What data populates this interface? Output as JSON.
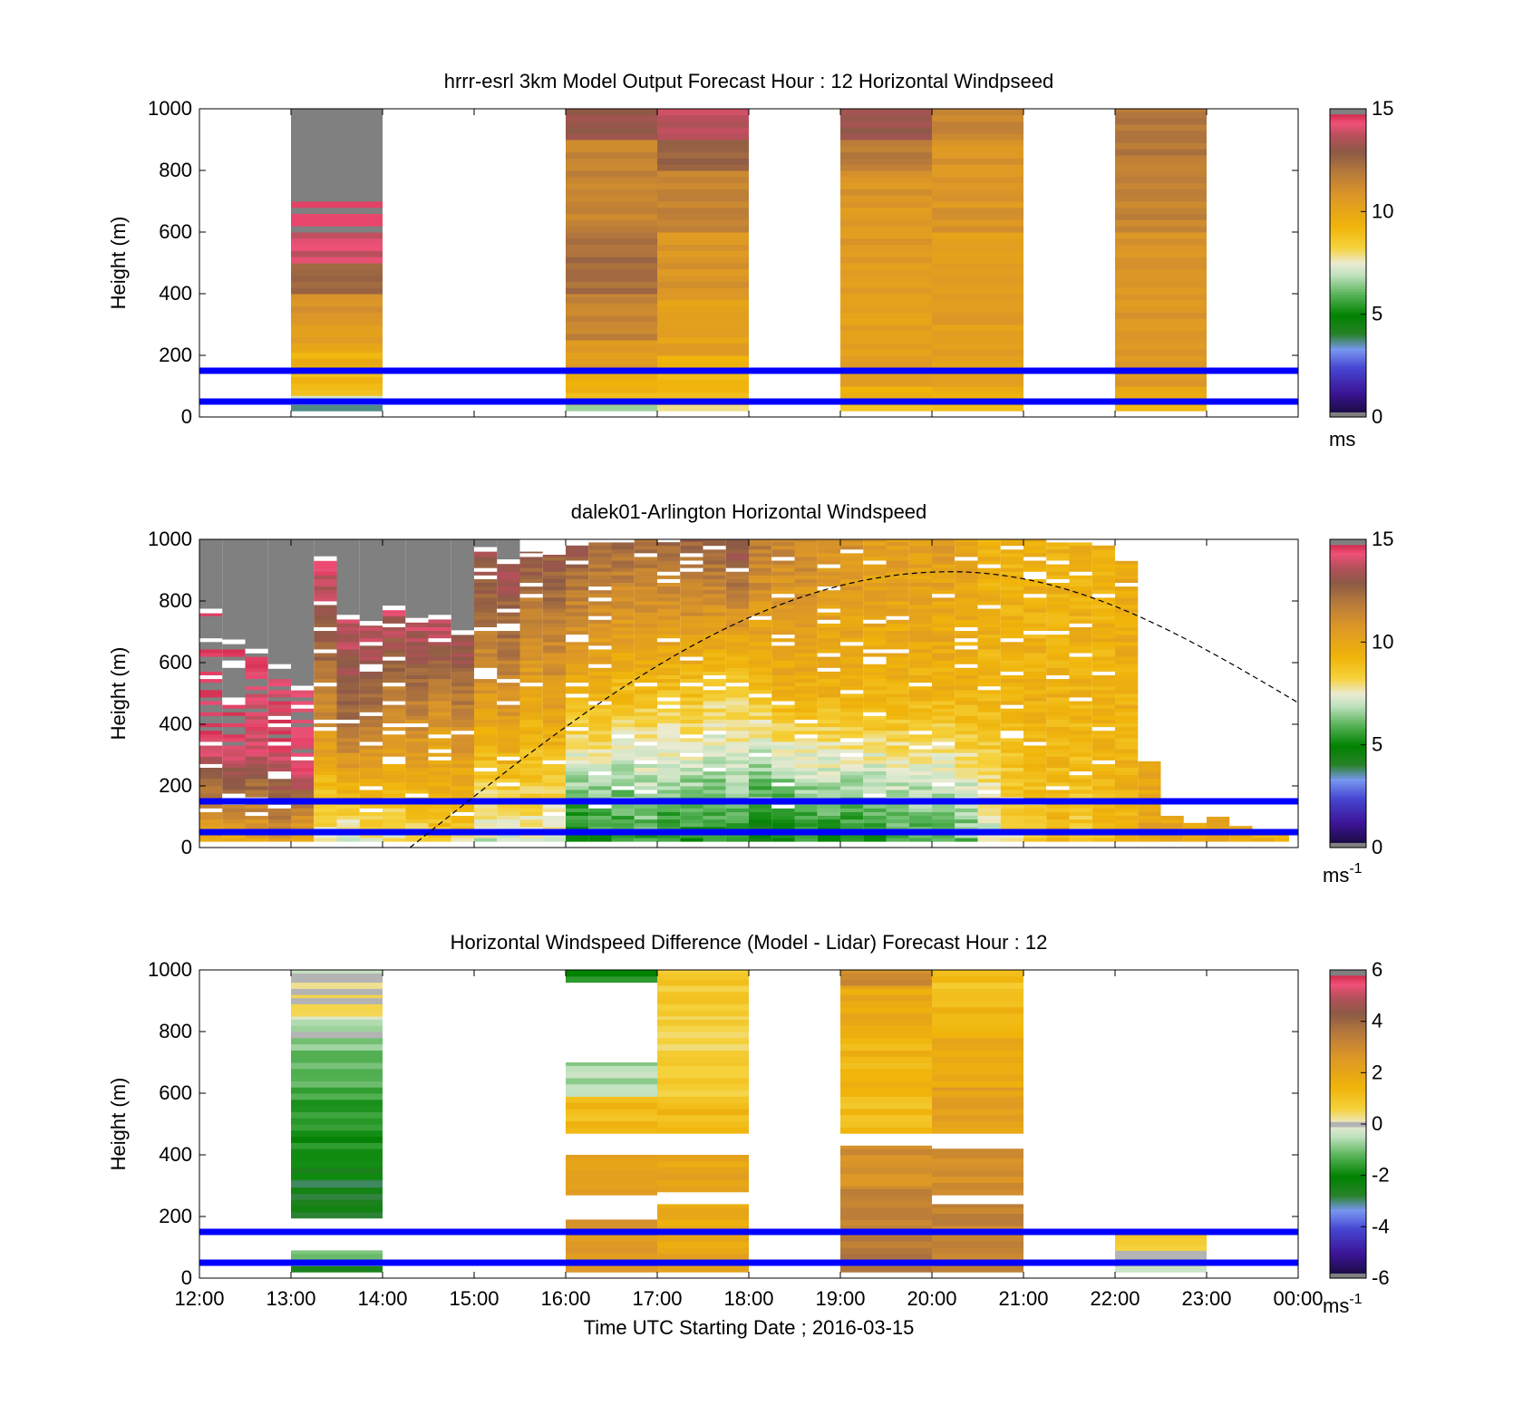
{
  "figure": {
    "xlabel": "Time UTC  Starting Date ; 2016-03-15"
  },
  "chart_data": [
    {
      "type": "heatmap",
      "title": "hrrr-esrl 3km Model Output   Forecast Hour : 12 Horizontal Windpseed",
      "ylabel": "Height (m)",
      "ylim": [
        0,
        1000
      ],
      "yticks": [
        "0",
        "200",
        "400",
        "600",
        "800",
        "1000"
      ],
      "xticks": [
        "12:00",
        "13:00",
        "14:00",
        "15:00",
        "16:00",
        "17:00",
        "18:00",
        "19:00",
        "20:00",
        "21:00",
        "22:00",
        "23:00",
        "00:00"
      ],
      "colorbar": {
        "min": 0,
        "max": 15,
        "ticks": [
          "0",
          "5",
          "10",
          "15"
        ],
        "unit": "ms",
        "scale": "speed"
      },
      "reference_lines_m": [
        50,
        150
      ],
      "columns": [
        {
          "hour": 13,
          "bottom": 20,
          "cells": [
            [
              20,
              40,
              4
            ],
            [
              40,
              70,
              7.5
            ],
            [
              70,
              90,
              8.5
            ],
            [
              90,
              150,
              9.2
            ],
            [
              150,
              220,
              9.5
            ],
            [
              220,
              300,
              10.3
            ],
            [
              300,
              400,
              11
            ],
            [
              400,
              500,
              12.5
            ],
            [
              500,
              600,
              14
            ],
            [
              600,
              700,
              14.7
            ],
            [
              700,
              1000,
              16
            ]
          ]
        },
        {
          "hour": 16,
          "bottom": 20,
          "cells": [
            [
              20,
              40,
              6.5
            ],
            [
              40,
              80,
              9
            ],
            [
              80,
              150,
              9.5
            ],
            [
              150,
              250,
              10.5
            ],
            [
              250,
              400,
              11.5
            ],
            [
              400,
              600,
              12.3
            ],
            [
              600,
              900,
              11.5
            ],
            [
              900,
              1000,
              13
            ]
          ]
        },
        {
          "hour": 17,
          "bottom": 20,
          "cells": [
            [
              20,
              40,
              7.7
            ],
            [
              40,
              80,
              8.8
            ],
            [
              80,
              200,
              9.3
            ],
            [
              200,
              400,
              10.3
            ],
            [
              400,
              600,
              10.8
            ],
            [
              600,
              800,
              11.5
            ],
            [
              800,
              900,
              12.5
            ],
            [
              900,
              1000,
              13.7
            ]
          ]
        },
        {
          "hour": 19,
          "bottom": 20,
          "cells": [
            [
              20,
              40,
              8.5
            ],
            [
              40,
              100,
              9.5
            ],
            [
              100,
              500,
              10.3
            ],
            [
              500,
              700,
              10.6
            ],
            [
              700,
              800,
              10.8
            ],
            [
              800,
              900,
              11.8
            ],
            [
              900,
              1000,
              13.3
            ]
          ]
        },
        {
          "hour": 20,
          "bottom": 20,
          "cells": [
            [
              20,
              40,
              9
            ],
            [
              40,
              100,
              9.6
            ],
            [
              100,
              600,
              10.4
            ],
            [
              600,
              900,
              10.8
            ],
            [
              900,
              1000,
              11.5
            ]
          ]
        },
        {
          "hour": 22,
          "bottom": 20,
          "cells": [
            [
              20,
              40,
              9.2
            ],
            [
              40,
              100,
              10
            ],
            [
              100,
              600,
              10.8
            ],
            [
              600,
              850,
              11.5
            ],
            [
              850,
              1000,
              12
            ]
          ]
        }
      ]
    },
    {
      "type": "heatmap",
      "title": "dalek01-Arlington  Horizontal Windspeed",
      "ylabel": "Height (m)",
      "ylim": [
        0,
        1000
      ],
      "yticks": [
        "0",
        "200",
        "400",
        "600",
        "800",
        "1000"
      ],
      "xticks": [
        "12:00",
        "13:00",
        "14:00",
        "15:00",
        "16:00",
        "17:00",
        "18:00",
        "19:00",
        "20:00",
        "21:00",
        "22:00",
        "23:00",
        "00:00"
      ],
      "colorbar": {
        "min": 0,
        "max": 15,
        "ticks": [
          "0",
          "5",
          "10",
          "15"
        ],
        "unit": "ms",
        "unit_sup": "-1",
        "scale": "speed"
      },
      "reference_lines_m": [
        50,
        150
      ],
      "boundary_curve": {
        "peak_hour": 20.2,
        "peak_m": 895,
        "zero_hour": 14.3,
        "end_hour": 24,
        "end_m": 470
      },
      "profiles": [
        {
          "start": 12.0,
          "end": 12.25,
          "top": 760,
          "low": 9.5,
          "mid": 15,
          "high": 15
        },
        {
          "start": 12.25,
          "end": 12.5,
          "top": 660,
          "low": 9.5,
          "mid": 14.8,
          "high": 15
        },
        {
          "start": 12.5,
          "end": 12.75,
          "top": 630,
          "low": 10,
          "mid": 14,
          "high": 14.8
        },
        {
          "start": 12.75,
          "end": 13.0,
          "top": 580,
          "low": 10.5,
          "mid": 14.2,
          "high": 14.5
        },
        {
          "start": 13.0,
          "end": 13.25,
          "top": 510,
          "low": 9.5,
          "mid": 14.5,
          "high": 14.6
        },
        {
          "start": 13.25,
          "end": 13.5,
          "top": 930,
          "low": 7.5,
          "mid": 11.5,
          "high": 14.5
        },
        {
          "start": 13.5,
          "end": 13.75,
          "top": 740,
          "low": 7,
          "mid": 12,
          "high": 14
        },
        {
          "start": 13.75,
          "end": 14.0,
          "top": 720,
          "low": 7.5,
          "mid": 11.5,
          "high": 14
        },
        {
          "start": 14.0,
          "end": 14.25,
          "top": 770,
          "low": 7.5,
          "mid": 11,
          "high": 14
        },
        {
          "start": 14.25,
          "end": 14.5,
          "top": 730,
          "low": 8,
          "mid": 11,
          "high": 14
        },
        {
          "start": 14.5,
          "end": 14.75,
          "top": 740,
          "low": 8.5,
          "mid": 10.5,
          "high": 14
        },
        {
          "start": 14.75,
          "end": 15.0,
          "top": 690,
          "low": 8,
          "mid": 11,
          "high": 13.5
        },
        {
          "start": 15.0,
          "end": 15.25,
          "top": 960,
          "low": 7,
          "mid": 10.5,
          "high": 13.5
        },
        {
          "start": 15.25,
          "end": 15.5,
          "top": 920,
          "low": 7,
          "mid": 11,
          "high": 13.5
        },
        {
          "start": 15.5,
          "end": 15.75,
          "top": 960,
          "low": 7.5,
          "mid": 10,
          "high": 13
        },
        {
          "start": 15.75,
          "end": 16.0,
          "top": 950,
          "low": 7,
          "mid": 10.5,
          "high": 13
        },
        {
          "start": 16.0,
          "end": 16.25,
          "top": 980,
          "low": 4.5,
          "mid": 9.5,
          "high": 13
        },
        {
          "start": 16.25,
          "end": 16.5,
          "top": 990,
          "low": 5,
          "mid": 9.5,
          "high": 12.5
        },
        {
          "start": 16.5,
          "end": 16.75,
          "top": 990,
          "low": 5,
          "mid": 9,
          "high": 12.5
        },
        {
          "start": 16.75,
          "end": 17.0,
          "top": 1000,
          "low": 5.5,
          "mid": 9,
          "high": 12.5
        },
        {
          "start": 17.0,
          "end": 17.25,
          "top": 1000,
          "low": 5,
          "mid": 9,
          "high": 12.5
        },
        {
          "start": 17.25,
          "end": 17.5,
          "top": 1000,
          "low": 5,
          "mid": 9,
          "high": 12.8
        },
        {
          "start": 17.5,
          "end": 17.75,
          "top": 1000,
          "low": 5,
          "mid": 8.5,
          "high": 13
        },
        {
          "start": 17.75,
          "end": 18.0,
          "top": 1000,
          "low": 5.5,
          "mid": 8.5,
          "high": 13.5
        },
        {
          "start": 18.0,
          "end": 18.25,
          "top": 1000,
          "low": 4,
          "mid": 9,
          "high": 12
        },
        {
          "start": 18.25,
          "end": 18.5,
          "top": 1000,
          "low": 4.5,
          "mid": 9.5,
          "high": 11.5
        },
        {
          "start": 18.5,
          "end": 18.75,
          "top": 1000,
          "low": 5,
          "mid": 9.5,
          "high": 11.5
        },
        {
          "start": 18.75,
          "end": 19.0,
          "top": 1000,
          "low": 5,
          "mid": 9.5,
          "high": 11
        },
        {
          "start": 19.0,
          "end": 19.25,
          "top": 1000,
          "low": 5,
          "mid": 9.5,
          "high": 11
        },
        {
          "start": 19.25,
          "end": 19.5,
          "top": 1000,
          "low": 5,
          "mid": 9.5,
          "high": 10.5
        },
        {
          "start": 19.5,
          "end": 19.75,
          "top": 1000,
          "low": 5.5,
          "mid": 9.5,
          "high": 10.5
        },
        {
          "start": 19.75,
          "end": 20.0,
          "top": 1000,
          "low": 5.5,
          "mid": 9.5,
          "high": 10.5
        },
        {
          "start": 20.0,
          "end": 20.25,
          "top": 1000,
          "low": 5.5,
          "mid": 9.5,
          "high": 10.5
        },
        {
          "start": 20.25,
          "end": 20.5,
          "top": 1000,
          "low": 6,
          "mid": 9.5,
          "high": 10
        },
        {
          "start": 20.5,
          "end": 20.75,
          "top": 1000,
          "low": 7,
          "mid": 9.5,
          "high": 9.5
        },
        {
          "start": 20.75,
          "end": 21.0,
          "top": 1000,
          "low": 8,
          "mid": 9.5,
          "high": 9.5
        },
        {
          "start": 21.0,
          "end": 21.25,
          "top": 1000,
          "low": 8.5,
          "mid": 9.5,
          "high": 9.5
        },
        {
          "start": 21.25,
          "end": 21.5,
          "top": 990,
          "low": 9,
          "mid": 9.5,
          "high": 9.5
        },
        {
          "start": 21.5,
          "end": 21.75,
          "top": 990,
          "low": 8.5,
          "mid": 9.5,
          "high": 9.5
        },
        {
          "start": 21.75,
          "end": 22.0,
          "top": 980,
          "low": 9,
          "mid": 9.5,
          "high": 9.5
        },
        {
          "start": 22.0,
          "end": 22.25,
          "top": 930,
          "low": 9.5,
          "mid": 9.5,
          "high": 10
        },
        {
          "start": 22.25,
          "end": 22.5,
          "top": 280,
          "low": 10,
          "mid": 10,
          "high": 10
        },
        {
          "start": 22.5,
          "end": 22.75,
          "top": 110,
          "low": 10,
          "mid": 10,
          "high": 10
        },
        {
          "start": 22.75,
          "end": 23.0,
          "top": 80,
          "low": 10,
          "mid": 10,
          "high": 10
        },
        {
          "start": 23.0,
          "end": 23.25,
          "top": 100,
          "low": 10,
          "mid": 10,
          "high": 10
        },
        {
          "start": 23.25,
          "end": 23.5,
          "top": 70,
          "low": 10,
          "mid": 10,
          "high": 10
        },
        {
          "start": 23.5,
          "end": 23.75,
          "top": 50,
          "low": 9.5,
          "mid": 9.5,
          "high": 9.5
        },
        {
          "start": 23.75,
          "end": 23.9,
          "top": 40,
          "low": 9.5,
          "mid": 9.5,
          "high": 9.5
        }
      ]
    },
    {
      "type": "heatmap",
      "title": "Horizontal Windspeed Difference (Model - Lidar) Forecast Hour : 12",
      "ylabel": "Height (m)",
      "ylim": [
        0,
        1000
      ],
      "yticks": [
        "0",
        "200",
        "400",
        "600",
        "800",
        "1000"
      ],
      "xticks": [
        "12:00",
        "13:00",
        "14:00",
        "15:00",
        "16:00",
        "17:00",
        "18:00",
        "19:00",
        "20:00",
        "21:00",
        "22:00",
        "23:00",
        "00:00"
      ],
      "colorbar": {
        "min": -6,
        "max": 6,
        "ticks": [
          "-6",
          "-4",
          "-2",
          "0",
          "2",
          "4",
          "6"
        ],
        "unit": "ms",
        "unit_sup": "-1",
        "scale": "diff"
      },
      "reference_lines_m": [
        50,
        150
      ],
      "columns": [
        {
          "hour": 13,
          "bottom": 20,
          "cells": [
            [
              20,
              40,
              -2.2
            ],
            [
              40,
              90,
              -0.8
            ],
            [
              195,
              320,
              -2.7
            ],
            [
              320,
              400,
              -2.2
            ],
            [
              400,
              500,
              -1.8
            ],
            [
              500,
              600,
              -1.6
            ],
            [
              600,
              700,
              -1.3
            ],
            [
              700,
              780,
              -1.0
            ],
            [
              780,
              850,
              -0.4
            ],
            [
              850,
              920,
              0.4
            ],
            [
              920,
              970,
              0.2
            ],
            [
              970,
              1000,
              -0.3
            ]
          ]
        },
        {
          "hour": 16,
          "bottom": 20,
          "cells": [
            [
              20,
              140,
              2.5
            ],
            [
              140,
              190,
              3
            ],
            [
              270,
              400,
              2.2
            ],
            [
              470,
              590,
              1.3
            ],
            [
              590,
              700,
              -0.6
            ],
            [
              960,
              1000,
              -1.8
            ]
          ]
        },
        {
          "hour": 17,
          "bottom": 20,
          "cells": [
            [
              20,
              150,
              2.0
            ],
            [
              150,
              240,
              1.8
            ],
            [
              280,
              400,
              2.0
            ],
            [
              470,
              570,
              1.3
            ],
            [
              570,
              700,
              0.8
            ],
            [
              700,
              850,
              0.6
            ],
            [
              850,
              1000,
              0.8
            ]
          ]
        },
        {
          "hour": 19,
          "bottom": 20,
          "cells": [
            [
              20,
              150,
              3.5
            ],
            [
              150,
              300,
              3.2
            ],
            [
              300,
              430,
              2.8
            ],
            [
              470,
              600,
              1.2
            ],
            [
              600,
              800,
              1.4
            ],
            [
              800,
              950,
              1.8
            ],
            [
              950,
              1000,
              3.0
            ]
          ]
        },
        {
          "hour": 20,
          "bottom": 20,
          "cells": [
            [
              20,
              150,
              3.4
            ],
            [
              150,
              240,
              3.2
            ],
            [
              270,
              420,
              2.8
            ],
            [
              470,
              620,
              2.2
            ],
            [
              620,
              800,
              1.8
            ],
            [
              800,
              900,
              1.3
            ],
            [
              900,
              1000,
              1.1
            ]
          ]
        },
        {
          "hour": 22,
          "bottom": 20,
          "cells": [
            [
              20,
              40,
              -0.3
            ],
            [
              40,
              90,
              0.2
            ],
            [
              90,
              140,
              0.8
            ]
          ]
        }
      ]
    }
  ]
}
